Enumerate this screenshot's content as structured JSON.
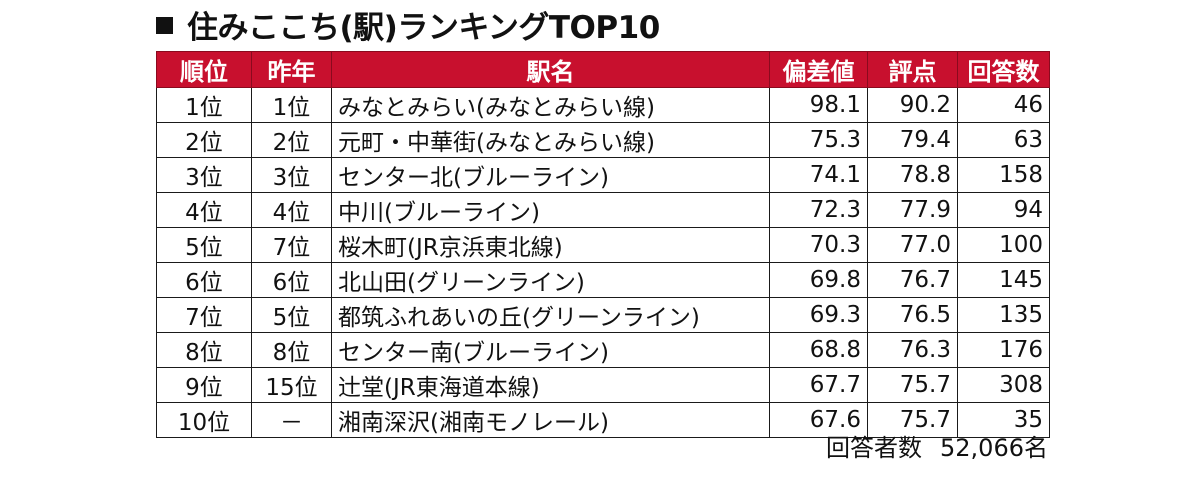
{
  "title": "住みここち(駅)ランキングTOP10",
  "headers": {
    "rank": "順位",
    "prev": "昨年",
    "station": "駅名",
    "deviation": "偏差値",
    "score": "評点",
    "respondents": "回答数"
  },
  "rows": [
    {
      "rank": "1位",
      "prev": "1位",
      "station": "みなとみらい(みなとみらい線)",
      "deviation": "98.1",
      "score": "90.2",
      "respondents": "46"
    },
    {
      "rank": "2位",
      "prev": "2位",
      "station": "元町・中華街(みなとみらい線)",
      "deviation": "75.3",
      "score": "79.4",
      "respondents": "63"
    },
    {
      "rank": "3位",
      "prev": "3位",
      "station": "センター北(ブルーライン)",
      "deviation": "74.1",
      "score": "78.8",
      "respondents": "158"
    },
    {
      "rank": "4位",
      "prev": "4位",
      "station": "中川(ブルーライン)",
      "deviation": "72.3",
      "score": "77.9",
      "respondents": "94"
    },
    {
      "rank": "5位",
      "prev": "7位",
      "station": "桜木町(JR京浜東北線)",
      "deviation": "70.3",
      "score": "77.0",
      "respondents": "100"
    },
    {
      "rank": "6位",
      "prev": "6位",
      "station": "北山田(グリーンライン)",
      "deviation": "69.8",
      "score": "76.7",
      "respondents": "145"
    },
    {
      "rank": "7位",
      "prev": "5位",
      "station": "都筑ふれあいの丘(グリーンライン)",
      "deviation": "69.3",
      "score": "76.5",
      "respondents": "135"
    },
    {
      "rank": "8位",
      "prev": "8位",
      "station": "センター南(ブルーライン)",
      "deviation": "68.8",
      "score": "76.3",
      "respondents": "176"
    },
    {
      "rank": "9位",
      "prev": "15位",
      "station": "辻堂(JR東海道本線)",
      "deviation": "67.7",
      "score": "75.7",
      "respondents": "308"
    },
    {
      "rank": "10位",
      "prev": "－",
      "station": "湘南深沢(湘南モノレール)",
      "deviation": "67.6",
      "score": "75.7",
      "respondents": "35"
    }
  ],
  "footer": {
    "label": "回答者数",
    "value": "52,066名"
  },
  "colors": {
    "header_bg": "#c8102e",
    "header_text": "#ffffff"
  }
}
